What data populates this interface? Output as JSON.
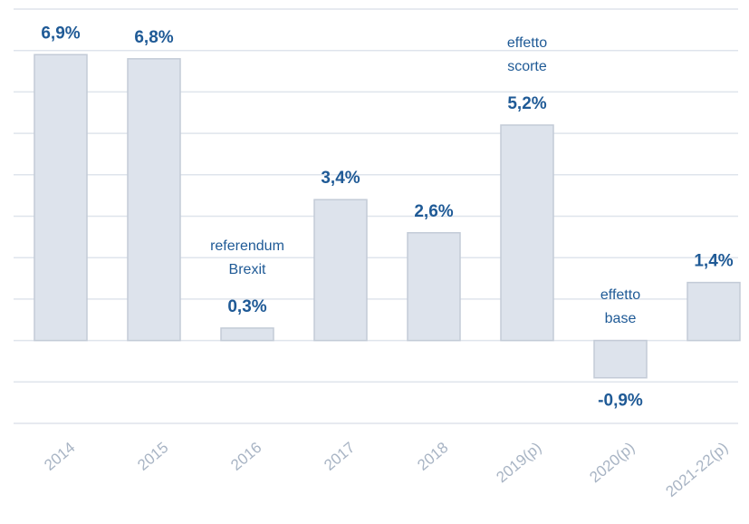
{
  "chart_data": {
    "type": "bar",
    "categories": [
      "2014",
      "2015",
      "2016",
      "2017",
      "2018",
      "2019(p)",
      "2020(p)",
      "2021-22(p)"
    ],
    "values": [
      6.9,
      6.8,
      0.3,
      3.4,
      2.6,
      5.2,
      -0.9,
      1.4
    ],
    "value_labels": [
      "6,9%",
      "6,8%",
      "0,3%",
      "3,4%",
      "2,6%",
      "5,2%",
      "-0,9%",
      "1,4%"
    ],
    "color": "#dde3ec",
    "ylim": [
      -2,
      8
    ],
    "yticks": [
      -2,
      -1,
      0,
      1,
      2,
      3,
      4,
      5,
      6,
      7,
      8
    ],
    "grid": true,
    "annotations": [
      {
        "category": "2016",
        "lines": [
          "referendum",
          "Brexit"
        ]
      },
      {
        "category": "2019(p)",
        "lines": [
          "effetto",
          "scorte"
        ]
      },
      {
        "category": "2020(p)",
        "lines": [
          "effetto",
          "base"
        ]
      }
    ]
  }
}
